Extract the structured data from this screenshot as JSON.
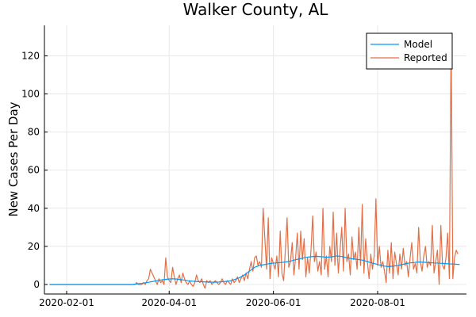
{
  "chart_data": {
    "type": "line",
    "title": "Walker County, AL",
    "xlabel": "",
    "ylabel": "New Cases Per Day",
    "x_ticks": [
      "2020-02-01",
      "2020-04-01",
      "2020-06-01",
      "2020-08-01"
    ],
    "y_ticks": [
      0,
      20,
      40,
      60,
      80,
      100,
      120
    ],
    "xlim": [
      "2020-01-19",
      "2020-09-22"
    ],
    "ylim": [
      -5,
      136
    ],
    "grid": true,
    "legend_position": "top-right",
    "colors": {
      "model": "#009AFA",
      "reported": "#E26F46"
    },
    "series": [
      {
        "name": "Model",
        "points": [
          [
            "2020-01-22",
            0
          ],
          [
            "2020-02-15",
            0
          ],
          [
            "2020-03-10",
            0
          ],
          [
            "2020-03-13",
            0.3
          ],
          [
            "2020-03-16",
            0.6
          ],
          [
            "2020-03-19",
            1.0
          ],
          [
            "2020-03-22",
            1.5
          ],
          [
            "2020-03-25",
            2.0
          ],
          [
            "2020-03-28",
            2.5
          ],
          [
            "2020-03-31",
            2.8
          ],
          [
            "2020-04-03",
            3.0
          ],
          [
            "2020-04-06",
            2.8
          ],
          [
            "2020-04-09",
            2.4
          ],
          [
            "2020-04-12",
            2.0
          ],
          [
            "2020-04-15",
            1.7
          ],
          [
            "2020-04-18",
            1.5
          ],
          [
            "2020-04-21",
            1.4
          ],
          [
            "2020-04-24",
            1.3
          ],
          [
            "2020-04-27",
            1.2
          ],
          [
            "2020-04-30",
            1.3
          ],
          [
            "2020-05-03",
            1.5
          ],
          [
            "2020-05-06",
            1.8
          ],
          [
            "2020-05-09",
            2.5
          ],
          [
            "2020-05-12",
            3.5
          ],
          [
            "2020-05-15",
            5.0
          ],
          [
            "2020-05-18",
            7.0
          ],
          [
            "2020-05-21",
            9.0
          ],
          [
            "2020-05-24",
            10.0
          ],
          [
            "2020-05-27",
            10.5
          ],
          [
            "2020-05-30",
            11.0
          ],
          [
            "2020-06-02",
            11.3
          ],
          [
            "2020-06-05",
            11.5
          ],
          [
            "2020-06-08",
            11.8
          ],
          [
            "2020-06-11",
            12.3
          ],
          [
            "2020-06-14",
            13.0
          ],
          [
            "2020-06-17",
            13.6
          ],
          [
            "2020-06-20",
            14.2
          ],
          [
            "2020-06-23",
            14.6
          ],
          [
            "2020-06-26",
            14.8
          ],
          [
            "2020-06-29",
            14.6
          ],
          [
            "2020-07-02",
            14.3
          ],
          [
            "2020-07-05",
            14.5
          ],
          [
            "2020-07-08",
            15.0
          ],
          [
            "2020-07-11",
            14.7
          ],
          [
            "2020-07-14",
            14.0
          ],
          [
            "2020-07-17",
            13.5
          ],
          [
            "2020-07-20",
            13.2
          ],
          [
            "2020-07-23",
            12.8
          ],
          [
            "2020-07-26",
            12.0
          ],
          [
            "2020-07-29",
            11.2
          ],
          [
            "2020-08-01",
            10.5
          ],
          [
            "2020-08-04",
            9.8
          ],
          [
            "2020-08-07",
            9.4
          ],
          [
            "2020-08-10",
            9.6
          ],
          [
            "2020-08-13",
            10.0
          ],
          [
            "2020-08-16",
            10.6
          ],
          [
            "2020-08-19",
            11.2
          ],
          [
            "2020-08-22",
            11.5
          ],
          [
            "2020-08-25",
            11.8
          ],
          [
            "2020-08-28",
            11.7
          ],
          [
            "2020-08-31",
            11.5
          ],
          [
            "2020-09-03",
            11.3
          ],
          [
            "2020-09-06",
            11.2
          ],
          [
            "2020-09-09",
            11.0
          ],
          [
            "2020-09-12",
            10.8
          ],
          [
            "2020-09-15",
            10.7
          ],
          [
            "2020-09-18",
            10.5
          ]
        ]
      },
      {
        "name": "Reported",
        "points": [
          [
            "2020-01-22",
            0
          ],
          [
            "2020-03-12",
            0
          ],
          [
            "2020-03-13",
            1
          ],
          [
            "2020-03-14",
            0
          ],
          [
            "2020-03-15",
            0
          ],
          [
            "2020-03-16",
            0
          ],
          [
            "2020-03-17",
            1
          ],
          [
            "2020-03-18",
            0
          ],
          [
            "2020-03-19",
            2
          ],
          [
            "2020-03-20",
            3
          ],
          [
            "2020-03-21",
            8
          ],
          [
            "2020-03-22",
            6
          ],
          [
            "2020-03-23",
            4
          ],
          [
            "2020-03-24",
            2
          ],
          [
            "2020-03-25",
            0
          ],
          [
            "2020-03-26",
            3
          ],
          [
            "2020-03-27",
            1
          ],
          [
            "2020-03-28",
            2
          ],
          [
            "2020-03-29",
            0
          ],
          [
            "2020-03-30",
            14
          ],
          [
            "2020-03-31",
            4
          ],
          [
            "2020-04-01",
            2
          ],
          [
            "2020-04-02",
            1
          ],
          [
            "2020-04-03",
            9
          ],
          [
            "2020-04-04",
            4
          ],
          [
            "2020-04-05",
            0
          ],
          [
            "2020-04-06",
            3
          ],
          [
            "2020-04-07",
            5
          ],
          [
            "2020-04-08",
            1
          ],
          [
            "2020-04-09",
            6
          ],
          [
            "2020-04-10",
            3
          ],
          [
            "2020-04-11",
            1
          ],
          [
            "2020-04-12",
            0
          ],
          [
            "2020-04-13",
            2
          ],
          [
            "2020-04-14",
            0
          ],
          [
            "2020-04-15",
            -1
          ],
          [
            "2020-04-16",
            1
          ],
          [
            "2020-04-17",
            5
          ],
          [
            "2020-04-18",
            2
          ],
          [
            "2020-04-19",
            1
          ],
          [
            "2020-04-20",
            3
          ],
          [
            "2020-04-21",
            0
          ],
          [
            "2020-04-22",
            -2
          ],
          [
            "2020-04-23",
            2
          ],
          [
            "2020-04-24",
            1
          ],
          [
            "2020-04-25",
            2
          ],
          [
            "2020-04-26",
            0
          ],
          [
            "2020-04-27",
            1
          ],
          [
            "2020-04-28",
            2
          ],
          [
            "2020-04-29",
            1
          ],
          [
            "2020-04-30",
            0
          ],
          [
            "2020-05-01",
            1
          ],
          [
            "2020-05-02",
            3
          ],
          [
            "2020-05-03",
            1
          ],
          [
            "2020-05-04",
            0
          ],
          [
            "2020-05-05",
            2
          ],
          [
            "2020-05-06",
            1
          ],
          [
            "2020-05-07",
            0
          ],
          [
            "2020-05-08",
            3
          ],
          [
            "2020-05-09",
            1
          ],
          [
            "2020-05-10",
            2
          ],
          [
            "2020-05-11",
            4
          ],
          [
            "2020-05-12",
            1
          ],
          [
            "2020-05-13",
            3
          ],
          [
            "2020-05-14",
            5
          ],
          [
            "2020-05-15",
            2
          ],
          [
            "2020-05-16",
            6
          ],
          [
            "2020-05-17",
            3
          ],
          [
            "2020-05-18",
            8
          ],
          [
            "2020-05-19",
            12
          ],
          [
            "2020-05-20",
            7
          ],
          [
            "2020-05-21",
            14
          ],
          [
            "2020-05-22",
            15
          ],
          [
            "2020-05-23",
            10
          ],
          [
            "2020-05-24",
            12
          ],
          [
            "2020-05-25",
            9
          ],
          [
            "2020-05-26",
            40
          ],
          [
            "2020-05-27",
            24
          ],
          [
            "2020-05-28",
            8
          ],
          [
            "2020-05-29",
            35
          ],
          [
            "2020-05-30",
            3
          ],
          [
            "2020-05-31",
            14
          ],
          [
            "2020-06-01",
            11
          ],
          [
            "2020-06-02",
            8
          ],
          [
            "2020-06-03",
            15
          ],
          [
            "2020-06-04",
            4
          ],
          [
            "2020-06-05",
            28
          ],
          [
            "2020-06-06",
            6
          ],
          [
            "2020-06-07",
            2
          ],
          [
            "2020-06-08",
            18
          ],
          [
            "2020-06-09",
            35
          ],
          [
            "2020-06-10",
            9
          ],
          [
            "2020-06-11",
            12
          ],
          [
            "2020-06-12",
            22
          ],
          [
            "2020-06-13",
            5
          ],
          [
            "2020-06-14",
            14
          ],
          [
            "2020-06-15",
            27
          ],
          [
            "2020-06-16",
            8
          ],
          [
            "2020-06-17",
            28
          ],
          [
            "2020-06-18",
            13
          ],
          [
            "2020-06-19",
            24
          ],
          [
            "2020-06-20",
            4
          ],
          [
            "2020-06-21",
            14
          ],
          [
            "2020-06-22",
            6
          ],
          [
            "2020-06-23",
            18
          ],
          [
            "2020-06-24",
            36
          ],
          [
            "2020-06-25",
            12
          ],
          [
            "2020-06-26",
            17
          ],
          [
            "2020-06-27",
            7
          ],
          [
            "2020-06-28",
            12
          ],
          [
            "2020-06-29",
            5
          ],
          [
            "2020-06-30",
            40
          ],
          [
            "2020-07-01",
            8
          ],
          [
            "2020-07-02",
            15
          ],
          [
            "2020-07-03",
            4
          ],
          [
            "2020-07-04",
            20
          ],
          [
            "2020-07-05",
            12
          ],
          [
            "2020-07-06",
            38
          ],
          [
            "2020-07-07",
            10
          ],
          [
            "2020-07-08",
            27
          ],
          [
            "2020-07-09",
            6
          ],
          [
            "2020-07-10",
            18
          ],
          [
            "2020-07-11",
            30
          ],
          [
            "2020-07-12",
            7
          ],
          [
            "2020-07-13",
            40
          ],
          [
            "2020-07-14",
            12
          ],
          [
            "2020-07-15",
            16
          ],
          [
            "2020-07-16",
            5
          ],
          [
            "2020-07-17",
            25
          ],
          [
            "2020-07-18",
            13
          ],
          [
            "2020-07-19",
            17
          ],
          [
            "2020-07-20",
            8
          ],
          [
            "2020-07-21",
            30
          ],
          [
            "2020-07-22",
            10
          ],
          [
            "2020-07-23",
            42
          ],
          [
            "2020-07-24",
            6
          ],
          [
            "2020-07-25",
            24
          ],
          [
            "2020-07-26",
            12
          ],
          [
            "2020-07-27",
            3
          ],
          [
            "2020-07-28",
            16
          ],
          [
            "2020-07-29",
            8
          ],
          [
            "2020-07-30",
            15
          ],
          [
            "2020-07-31",
            45
          ],
          [
            "2020-08-01",
            10
          ],
          [
            "2020-08-02",
            20
          ],
          [
            "2020-08-03",
            9
          ],
          [
            "2020-08-04",
            12
          ],
          [
            "2020-08-05",
            7
          ],
          [
            "2020-08-06",
            1
          ],
          [
            "2020-08-07",
            18
          ],
          [
            "2020-08-08",
            6
          ],
          [
            "2020-08-09",
            22
          ],
          [
            "2020-08-10",
            3
          ],
          [
            "2020-08-11",
            17
          ],
          [
            "2020-08-12",
            11
          ],
          [
            "2020-08-13",
            5
          ],
          [
            "2020-08-14",
            16
          ],
          [
            "2020-08-15",
            8
          ],
          [
            "2020-08-16",
            19
          ],
          [
            "2020-08-17",
            10
          ],
          [
            "2020-08-18",
            12
          ],
          [
            "2020-08-19",
            4
          ],
          [
            "2020-08-20",
            14
          ],
          [
            "2020-08-21",
            22
          ],
          [
            "2020-08-22",
            8
          ],
          [
            "2020-08-23",
            11
          ],
          [
            "2020-08-24",
            6
          ],
          [
            "2020-08-25",
            30
          ],
          [
            "2020-08-26",
            12
          ],
          [
            "2020-08-27",
            7
          ],
          [
            "2020-08-28",
            15
          ],
          [
            "2020-08-29",
            20
          ],
          [
            "2020-08-30",
            9
          ],
          [
            "2020-08-31",
            12
          ],
          [
            "2020-09-01",
            10
          ],
          [
            "2020-09-02",
            31
          ],
          [
            "2020-09-03",
            6
          ],
          [
            "2020-09-04",
            12
          ],
          [
            "2020-09-05",
            18
          ],
          [
            "2020-09-06",
            0
          ],
          [
            "2020-09-07",
            31
          ],
          [
            "2020-09-08",
            10
          ],
          [
            "2020-09-09",
            8
          ],
          [
            "2020-09-10",
            14
          ],
          [
            "2020-09-11",
            27
          ],
          [
            "2020-09-12",
            3
          ],
          [
            "2020-09-13",
            132
          ],
          [
            "2020-09-14",
            3
          ],
          [
            "2020-09-15",
            14
          ],
          [
            "2020-09-16",
            18
          ],
          [
            "2020-09-17",
            16
          ]
        ]
      }
    ]
  }
}
